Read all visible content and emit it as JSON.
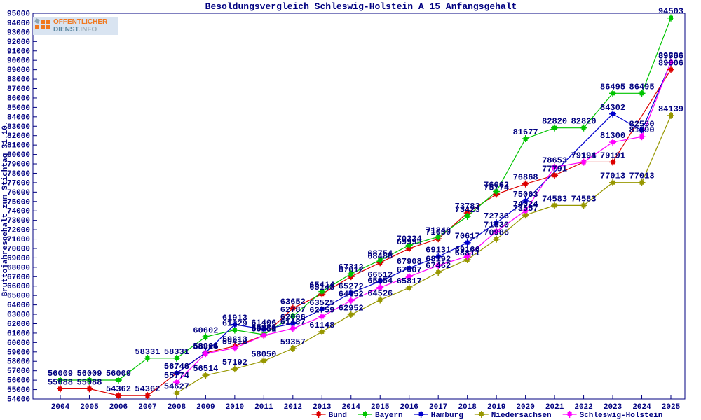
{
  "logo": {
    "line1": "ÖFFENTLICHER",
    "line2_a": "DIENST",
    "line2_b": ".INFO",
    "orange": "#f0781e",
    "teal": "#5b87a0",
    "gray": "#9fb0ba",
    "background": "#d9e4f1"
  },
  "chart_data": {
    "type": "line",
    "title": "Besoldungsvergleich Schleswig-Holstein A 15 Anfangsgehalt",
    "ylabel": "Bruttojahresgehalt zum Stichtag 31.10.",
    "xlabel": "",
    "x": [
      2004,
      2005,
      2006,
      2007,
      2008,
      2009,
      2010,
      2011,
      2012,
      2013,
      2014,
      2015,
      2016,
      2017,
      2018,
      2019,
      2020,
      2021,
      2022,
      2023,
      2024,
      2025
    ],
    "ylim": [
      54000,
      95000
    ],
    "ytick_step": 1000,
    "grid": false,
    "legend_position": "bottom",
    "axis_color": "#000080",
    "label_color": "#000080",
    "series": [
      {
        "name": "Bund",
        "color": "#dd0000",
        "values": [
          55088,
          55088,
          54362,
          54362,
          56746,
          58905,
          59613,
          60751,
          63652,
          65148,
          67012,
          68486,
          69995,
          71030,
          73783,
          75774,
          76868,
          77791,
          79191,
          79191,
          null,
          89006
        ]
      },
      {
        "name": "Bayern",
        "color": "#00c400",
        "values": [
          56009,
          56009,
          56009,
          58331,
          58331,
          60602,
          61329,
          60839,
          62787,
          65414,
          67312,
          68754,
          70334,
          71240,
          73423,
          76062,
          81677,
          82820,
          82820,
          86495,
          86495,
          94503
        ]
      },
      {
        "name": "Hamburg",
        "color": "#0000cc",
        "values": [
          null,
          null,
          null,
          null,
          56748,
          58924,
          61913,
          61406,
          62006,
          63525,
          65272,
          66512,
          67908,
          69131,
          70617,
          72736,
          75063,
          null,
          null,
          84302,
          82550,
          89756
        ]
      },
      {
        "name": "Niedersachsen",
        "color": "#979700",
        "values": [
          null,
          null,
          null,
          null,
          54627,
          56514,
          57192,
          58050,
          59357,
          61148,
          62952,
          64526,
          65817,
          67462,
          68811,
          70986,
          73557,
          74583,
          74583,
          77013,
          77013,
          84139
        ]
      },
      {
        "name": "Schleswig-Holstein",
        "color": "#ff00ff",
        "values": [
          null,
          null,
          null,
          null,
          55774,
          58824,
          59413,
          60750,
          61487,
          62759,
          64452,
          65854,
          67007,
          68192,
          69166,
          71830,
          74024,
          78653,
          79194,
          81300,
          81890,
          89806
        ]
      }
    ]
  }
}
